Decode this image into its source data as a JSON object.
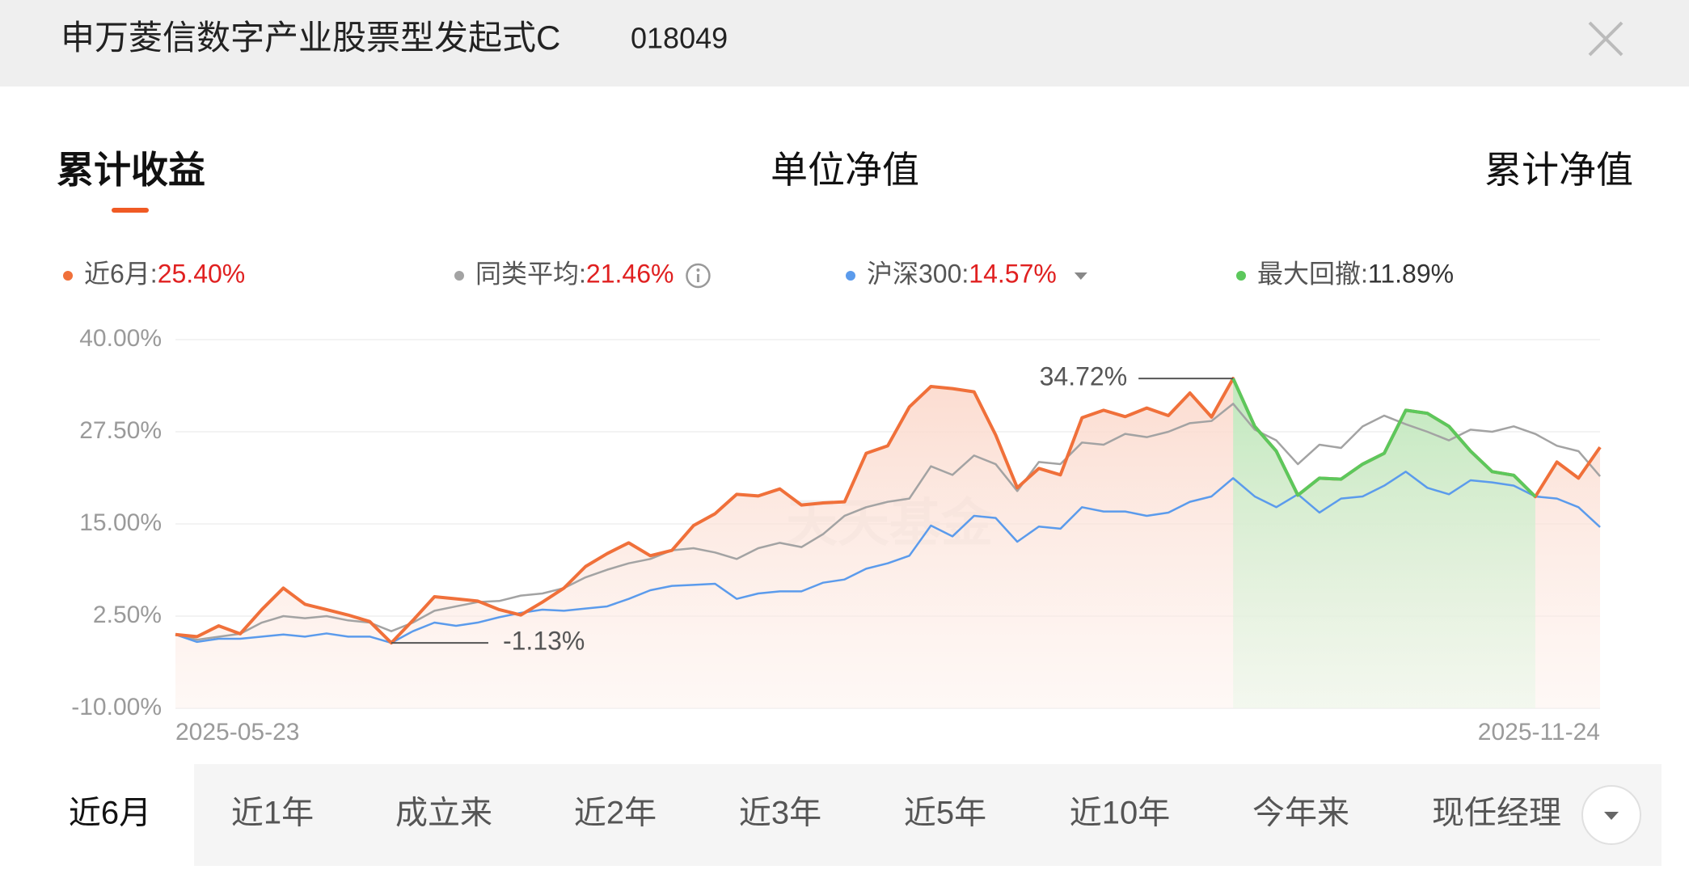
{
  "header": {
    "title": "申万菱信数字产业股票型发起式C",
    "code": "018049"
  },
  "tabs": [
    "累计收益",
    "单位净值",
    "累计净值"
  ],
  "watermark": "天天基金",
  "periods": [
    "近6月",
    "近1年",
    "成立来",
    "近2年",
    "近3年",
    "近5年",
    "近10年",
    "今年来",
    "现任经理"
  ],
  "chart_data": {
    "type": "line",
    "categories": [
      "2025-05-23",
      null,
      null,
      null,
      null,
      null,
      null,
      null,
      null,
      null,
      null,
      null,
      null,
      null,
      null,
      null,
      null,
      null,
      null,
      null,
      null,
      null,
      null,
      null,
      null,
      null,
      null,
      null,
      null,
      null,
      null,
      null,
      null,
      null,
      null,
      null,
      null,
      null,
      null,
      null,
      null,
      null,
      null,
      null,
      null,
      null,
      null,
      null,
      null,
      null,
      null,
      null,
      null,
      null,
      null,
      null,
      null,
      null,
      null,
      null,
      null,
      null,
      null,
      null,
      null,
      null,
      "2025-11-24"
    ],
    "series": [
      {
        "name": "近6月:",
        "color": "#f0703a",
        "value_label": "25.40%",
        "values": [
          0,
          -0.28,
          1.18,
          0.1,
          3.38,
          6.3,
          4.11,
          3.38,
          2.65,
          1.77,
          -1.13,
          1.92,
          5.13,
          4.84,
          4.55,
          3.38,
          2.65,
          4.4,
          6.3,
          9.23,
          10.98,
          12.44,
          10.69,
          11.42,
          14.78,
          16.39,
          19.02,
          18.8,
          19.75,
          17.56,
          17.85,
          18.0,
          24.58,
          25.6,
          30.86,
          33.64,
          33.35,
          32.91,
          27.06,
          19.9,
          22.53,
          21.65,
          29.4,
          30.42,
          29.55,
          30.72,
          29.69,
          32.76,
          29.5,
          34.72,
          28.23,
          24.87,
          18.9,
          21.21,
          21.07,
          23.11,
          24.58,
          30.42,
          30.0,
          28.23,
          24.87,
          22.09,
          21.6,
          18.7,
          23.4,
          21.21,
          25.4
        ]
      },
      {
        "name": "同类平均:",
        "color": "#a3a3a3",
        "value_label": "21.46%",
        "values": [
          0,
          -0.7,
          -0.3,
          0.1,
          1.62,
          2.5,
          2.21,
          2.5,
          1.92,
          1.62,
          0.45,
          1.62,
          3.23,
          3.82,
          4.4,
          4.55,
          5.28,
          5.57,
          6.3,
          7.76,
          8.79,
          9.66,
          10.25,
          11.42,
          11.71,
          11.13,
          10.25,
          11.71,
          12.44,
          11.86,
          13.61,
          16.1,
          17.27,
          18.0,
          18.44,
          22.82,
          21.65,
          24.28,
          23.11,
          19.46,
          23.4,
          23.11,
          26.04,
          25.75,
          27.21,
          26.77,
          27.5,
          28.67,
          28.96,
          31.3,
          27.79,
          26.33,
          23.11,
          25.75,
          25.31,
          28.23,
          29.69,
          28.52,
          27.5,
          26.33,
          27.79,
          27.5,
          28.23,
          27.21,
          25.6,
          24.87,
          21.46
        ]
      },
      {
        "name": "沪深300:",
        "color": "#5b9bec",
        "value_label": "14.57%",
        "values": [
          0,
          -1.0,
          -0.57,
          -0.57,
          -0.28,
          0,
          -0.28,
          0.15,
          -0.28,
          -0.28,
          -1.13,
          0.45,
          1.62,
          1.18,
          1.62,
          2.35,
          2.94,
          3.38,
          3.23,
          3.53,
          3.82,
          4.84,
          6.01,
          6.6,
          6.74,
          6.89,
          4.84,
          5.57,
          5.86,
          5.86,
          7.03,
          7.47,
          8.93,
          9.66,
          10.69,
          14.78,
          13.32,
          16.1,
          15.81,
          12.59,
          14.64,
          14.35,
          17.27,
          16.69,
          16.69,
          16.1,
          16.54,
          18.0,
          18.73,
          21.21,
          18.73,
          17.27,
          19.02,
          16.54,
          18.44,
          18.73,
          20.19,
          22.09,
          19.9,
          19.02,
          20.92,
          20.63,
          20.19,
          18.73,
          18.44,
          17.27,
          14.57
        ]
      }
    ],
    "drawdown": {
      "name": "最大回撤:",
      "color": "#5cc85c",
      "value": 11.89,
      "value_label": "11.89%"
    },
    "annotations": [
      {
        "value": 34.72,
        "label": "34.72%"
      },
      {
        "value": -1.13,
        "label": "-1.13%"
      }
    ],
    "ylim": [
      -10,
      40
    ],
    "yticks": [
      {
        "value": -10,
        "label": "-10.00%"
      },
      {
        "value": 2.5,
        "label": "2.50%"
      },
      {
        "value": 15,
        "label": "15.00%"
      },
      {
        "value": 27.5,
        "label": "27.50%"
      },
      {
        "value": 40,
        "label": "40.00%"
      }
    ],
    "grid": true
  }
}
